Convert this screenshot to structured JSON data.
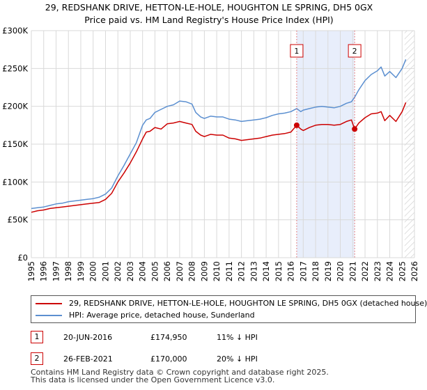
{
  "chart_data": {
    "type": "line",
    "title": "29, REDSHANK DRIVE, HETTON-LE-HOLE, HOUGHTON LE SPRING, DH5 0GX",
    "subtitle": "Price paid vs. HM Land Registry's House Price Index (HPI)",
    "xlabel": "",
    "ylabel": "",
    "xlim": [
      1995,
      2026
    ],
    "ylim": [
      0,
      300000
    ],
    "y_ticks": [
      0,
      50000,
      100000,
      150000,
      200000,
      250000,
      300000
    ],
    "y_tick_labels": [
      "£0",
      "£50K",
      "£100K",
      "£150K",
      "£200K",
      "£250K",
      "£300K"
    ],
    "x_ticks": [
      "1995",
      "1996",
      "1997",
      "1998",
      "1999",
      "2000",
      "2001",
      "2002",
      "2003",
      "2004",
      "2005",
      "2006",
      "2007",
      "2008",
      "2009",
      "2010",
      "2011",
      "2012",
      "2013",
      "2014",
      "2015",
      "2016",
      "2017",
      "2018",
      "2019",
      "2020",
      "2021",
      "2022",
      "2023",
      "2024",
      "2025",
      "2026"
    ],
    "grid": true,
    "shaded_period": [
      2016.47,
      2021.16
    ],
    "future_hatch_from": 2025.2,
    "series": [
      {
        "name": "29, REDSHANK DRIVE, HETTON-LE-HOLE, HOUGHTON LE SPRING, DH5 0GX (detached house)",
        "color": "#cc0000",
        "x": [
          1995.0,
          1995.5,
          1996.0,
          1996.5,
          1997.0,
          1997.5,
          1998.0,
          1998.5,
          1999.0,
          1999.5,
          2000.0,
          2000.5,
          2001.0,
          2001.5,
          2002.0,
          2002.5,
          2003.0,
          2003.5,
          2004.0,
          2004.3,
          2004.6,
          2005.0,
          2005.5,
          2006.0,
          2006.5,
          2007.0,
          2007.5,
          2008.0,
          2008.3,
          2008.7,
          2009.0,
          2009.5,
          2010.0,
          2010.5,
          2011.0,
          2011.5,
          2012.0,
          2012.5,
          2013.0,
          2013.5,
          2014.0,
          2014.5,
          2015.0,
          2015.5,
          2016.0,
          2016.47,
          2016.8,
          2017.0,
          2017.5,
          2018.0,
          2018.5,
          2019.0,
          2019.5,
          2020.0,
          2020.5,
          2020.9,
          2021.16,
          2021.5,
          2022.0,
          2022.5,
          2023.0,
          2023.3,
          2023.6,
          2024.0,
          2024.5,
          2025.0,
          2025.3
        ],
        "values": [
          60000,
          62000,
          63000,
          65000,
          66000,
          67000,
          68000,
          69000,
          70000,
          71000,
          72000,
          73000,
          77000,
          85000,
          100000,
          112000,
          125000,
          140000,
          157000,
          166000,
          167000,
          172000,
          170000,
          177000,
          178000,
          180000,
          178000,
          176000,
          167000,
          162000,
          160000,
          163000,
          162000,
          162000,
          158000,
          157000,
          155000,
          156000,
          157000,
          158000,
          160000,
          162000,
          163000,
          164000,
          166000,
          174950,
          170000,
          168000,
          172000,
          175000,
          176000,
          176000,
          175000,
          176000,
          180000,
          182000,
          170000,
          178000,
          185000,
          190000,
          191000,
          193000,
          181000,
          188000,
          180000,
          193000,
          205000
        ]
      },
      {
        "name": "HPI: Average price, detached house, Sunderland",
        "color": "#5b8fd0",
        "x": [
          1995.0,
          1995.5,
          1996.0,
          1996.5,
          1997.0,
          1997.5,
          1998.0,
          1998.5,
          1999.0,
          1999.5,
          2000.0,
          2000.5,
          2001.0,
          2001.5,
          2002.0,
          2002.5,
          2003.0,
          2003.5,
          2004.0,
          2004.3,
          2004.6,
          2005.0,
          2005.5,
          2006.0,
          2006.5,
          2007.0,
          2007.5,
          2008.0,
          2008.3,
          2008.7,
          2009.0,
          2009.5,
          2010.0,
          2010.5,
          2011.0,
          2011.5,
          2012.0,
          2012.5,
          2013.0,
          2013.5,
          2014.0,
          2014.5,
          2015.0,
          2015.5,
          2016.0,
          2016.47,
          2016.8,
          2017.0,
          2017.5,
          2018.0,
          2018.5,
          2019.0,
          2019.5,
          2020.0,
          2020.5,
          2020.9,
          2021.16,
          2021.5,
          2022.0,
          2022.5,
          2023.0,
          2023.3,
          2023.6,
          2024.0,
          2024.5,
          2025.0,
          2025.3
        ],
        "values": [
          65000,
          66000,
          67000,
          69000,
          71000,
          72000,
          74000,
          75000,
          76000,
          77000,
          78000,
          80000,
          84000,
          92000,
          108000,
          122000,
          137000,
          152000,
          175000,
          182000,
          184000,
          192000,
          196000,
          200000,
          202000,
          207000,
          206000,
          203000,
          192000,
          186000,
          184000,
          187000,
          186000,
          186000,
          183000,
          182000,
          180000,
          181000,
          182000,
          183000,
          185000,
          188000,
          190000,
          191000,
          193000,
          197000,
          193000,
          195000,
          197000,
          199000,
          200000,
          199000,
          198000,
          200000,
          204000,
          206000,
          212000,
          222000,
          234000,
          242000,
          247000,
          252000,
          240000,
          246000,
          238000,
          250000,
          262000
        ]
      }
    ],
    "sale_markers": [
      {
        "label": "1",
        "x": 2016.47,
        "value": 174950
      },
      {
        "label": "2",
        "x": 2021.16,
        "value": 170000
      }
    ]
  },
  "legend": {
    "property_label": "29, REDSHANK DRIVE, HETTON-LE-HOLE, HOUGHTON LE SPRING, DH5 0GX (detached house)",
    "hpi_label": "HPI: Average price, detached house, Sunderland"
  },
  "sales": [
    {
      "num": "1",
      "date": "20-JUN-2016",
      "price": "£174,950",
      "hpi": "11% ↓ HPI"
    },
    {
      "num": "2",
      "date": "26-FEB-2021",
      "price": "£170,000",
      "hpi": "20% ↓ HPI"
    }
  ],
  "footer": {
    "line1": "Contains HM Land Registry data © Crown copyright and database right 2025.",
    "line2": "This data is licensed under the Open Government Licence v3.0."
  },
  "colors": {
    "property": "#cc0000",
    "hpi": "#5b8fd0",
    "shade": "#e8eefb",
    "grid": "#d9d9d9"
  }
}
